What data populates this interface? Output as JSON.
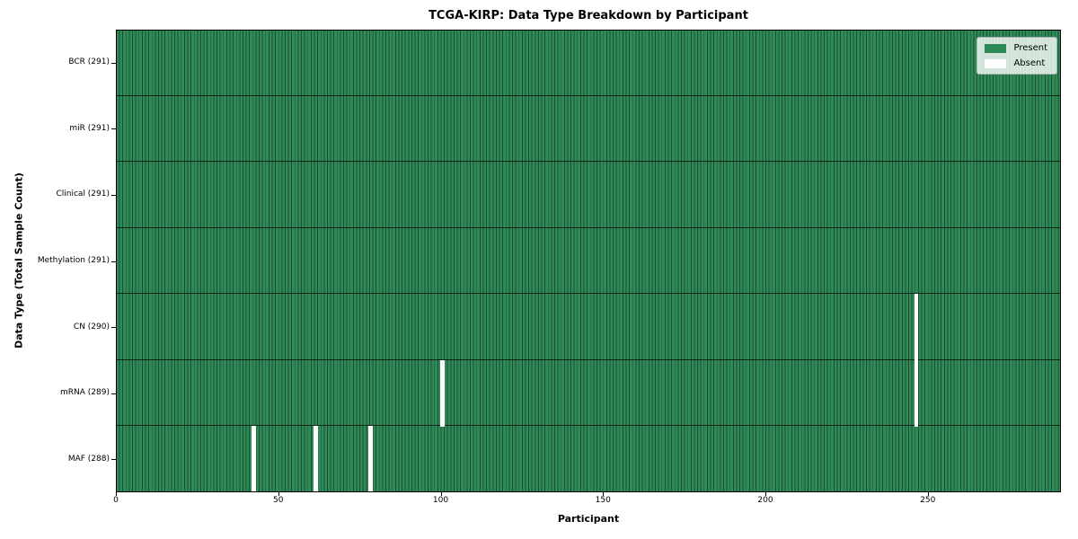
{
  "chart_data": {
    "type": "heatmap",
    "title": "TCGA-KIRP: Data Type Breakdown by Participant",
    "xlabel": "Participant",
    "ylabel": "Data Type (Total Sample Count)",
    "x_ticks": [
      0,
      50,
      100,
      150,
      200,
      250
    ],
    "xlim": [
      0,
      291
    ],
    "n_participants": 291,
    "grid": false,
    "legend": {
      "position": "upper-right",
      "entries": [
        {
          "label": "Present",
          "color": "#2e8b57"
        },
        {
          "label": "Absent",
          "color": "#ffffff"
        }
      ]
    },
    "rows": [
      {
        "label": "BCR (291)",
        "data_type": "BCR",
        "total_samples": 291,
        "absent_participants": []
      },
      {
        "label": "miR (291)",
        "data_type": "miR",
        "total_samples": 291,
        "absent_participants": []
      },
      {
        "label": "Clinical (291)",
        "data_type": "Clinical",
        "total_samples": 291,
        "absent_participants": []
      },
      {
        "label": "Methylation (291)",
        "data_type": "Methylation",
        "total_samples": 291,
        "absent_participants": []
      },
      {
        "label": "CN (290)",
        "data_type": "CN",
        "total_samples": 290,
        "absent_participants": [
          246
        ]
      },
      {
        "label": "mRNA (289)",
        "data_type": "mRNA",
        "total_samples": 289,
        "absent_participants": [
          100,
          246
        ]
      },
      {
        "label": "MAF (288)",
        "data_type": "MAF",
        "total_samples": 288,
        "absent_participants": [
          42,
          61,
          78
        ]
      }
    ],
    "colors": {
      "present": "#2e8b57",
      "absent": "#ffffff",
      "cell_edge": "#1d4d31",
      "row_divider": "#1a1a1a",
      "axis": "#000000",
      "legend_border": "#b0b0b0",
      "legend_bg": "rgba(255,255,255,0.8)"
    }
  }
}
